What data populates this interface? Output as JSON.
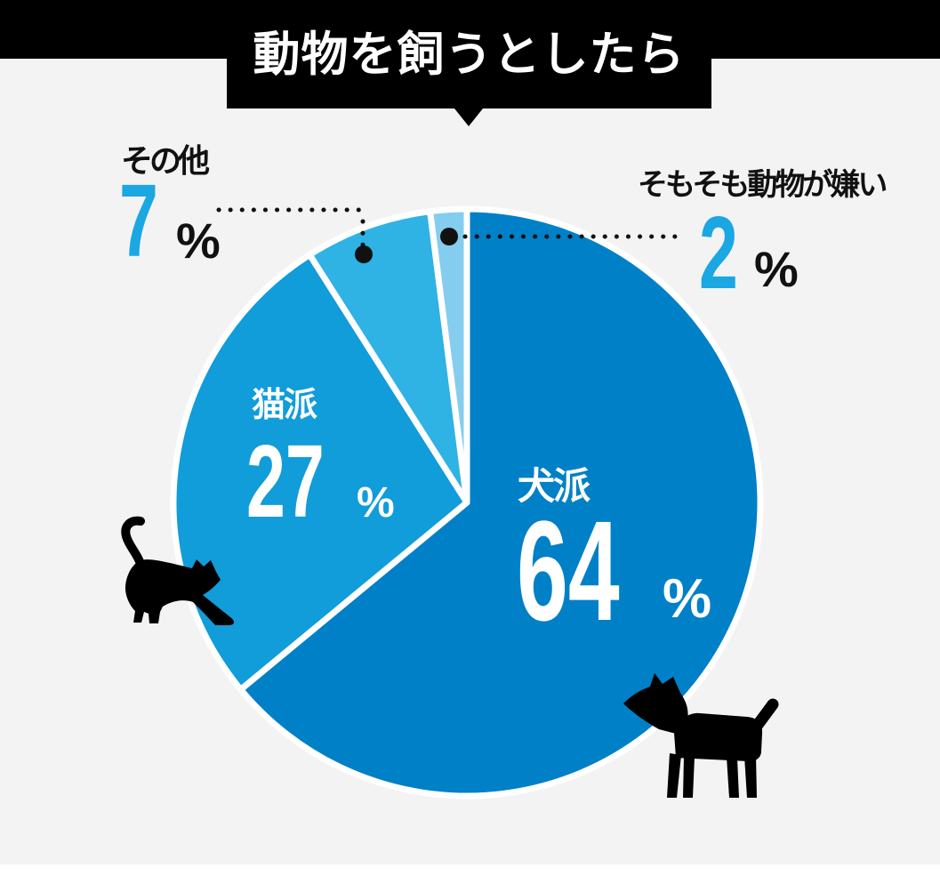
{
  "title": "動物を飼うとしたら",
  "chart_data": {
    "type": "pie",
    "title": "動物を飼うとしたら",
    "unit": "%",
    "direction": "clockwise",
    "start_angle_deg": 0,
    "categories": [
      "犬派",
      "猫派",
      "その他",
      "そもそも動物が嫌い"
    ],
    "values": [
      64,
      27,
      7,
      2
    ],
    "slices": [
      {
        "label": "犬派",
        "value": 64,
        "color": "#0080c7",
        "label_style": "white text on slice"
      },
      {
        "label": "猫派",
        "value": 27,
        "color": "#119cda",
        "label_style": "white text on slice"
      },
      {
        "label": "その他",
        "value": 7,
        "color": "#2fb2e4",
        "label_style": "external callout with dotted leader"
      },
      {
        "label": "そもそも動物が嫌い",
        "value": 2,
        "color": "#85cdee",
        "label_style": "external callout with dotted leader"
      }
    ],
    "legend_position": "callout-labels",
    "grid": false
  },
  "labels": {
    "dog": {
      "name": "犬派",
      "value": "64",
      "unit": "%"
    },
    "cat": {
      "name": "猫派",
      "value": "27",
      "unit": "%"
    },
    "other": {
      "name": "その他",
      "value": "7",
      "unit": "%"
    },
    "hate": {
      "name": "そもそも動物が嫌い",
      "value": "2",
      "unit": "%"
    }
  },
  "colors": {
    "background": "#f3f3f4",
    "banner": "#000000",
    "title_text": "#ffffff",
    "accent_number": "#1ba7e2",
    "dark_text": "#111111",
    "white_text": "#ffffff",
    "leader_dots": "#111111",
    "silhouette": "#000000",
    "slice_divider": "#ffffff"
  },
  "icons": {
    "cat": "cat-silhouette",
    "dog": "dog-silhouette",
    "pointer": "down-triangle"
  }
}
